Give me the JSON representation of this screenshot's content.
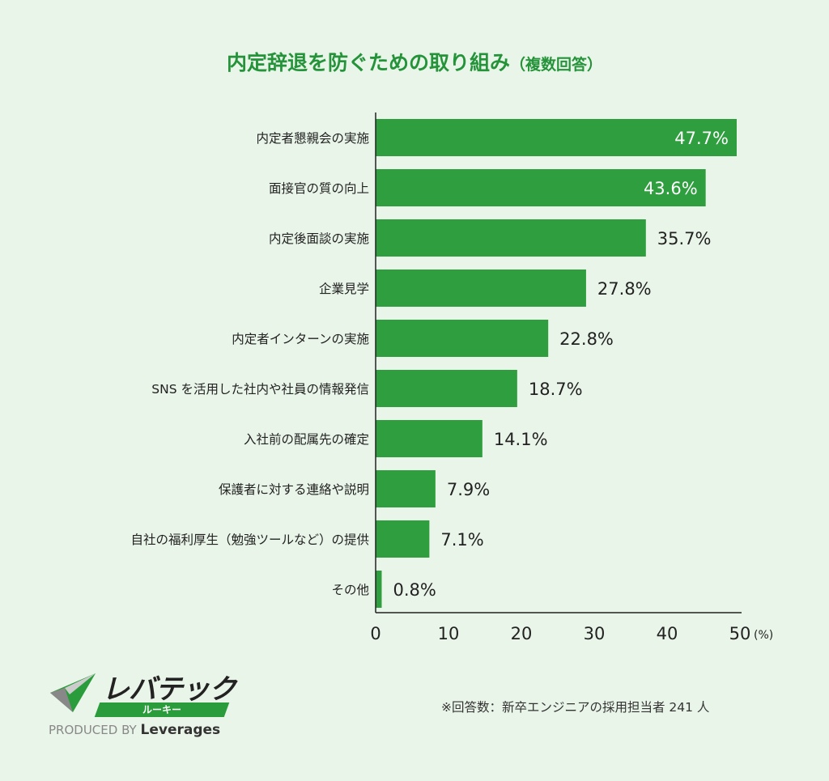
{
  "chart_data": {
    "type": "bar",
    "orientation": "horizontal",
    "title": "内定辞退を防ぐための取り組み",
    "subtitle": "（複数回答）",
    "categories": [
      "内定者懇親会の実施",
      "面接官の質の向上",
      "内定後面談の実施",
      "企業見学",
      "内定者インターンの実施",
      "SNS を活用した社内や社員の情報発信",
      "入社前の配属先の確定",
      "保護者に対する連絡や説明",
      "自社の福利厚生（勉強ツールなど）の提供",
      "その他"
    ],
    "values": [
      47.7,
      43.6,
      35.7,
      27.8,
      22.8,
      18.7,
      14.1,
      7.9,
      7.1,
      0.8
    ],
    "value_suffix": "%",
    "xlim": [
      0,
      50
    ],
    "xticks": [
      0,
      10,
      20,
      30,
      40,
      50
    ],
    "xunit": "(%)",
    "grid": false,
    "bar_color": "#2e9e3e",
    "title_color": "#24933a"
  },
  "footnote": "※回答数：新卒エンジニアの採用担当者 241 人",
  "logo": {
    "brand": "レバテック",
    "sub": "ルーキー",
    "produced": "PRODUCED BY",
    "company": "Leverages"
  }
}
